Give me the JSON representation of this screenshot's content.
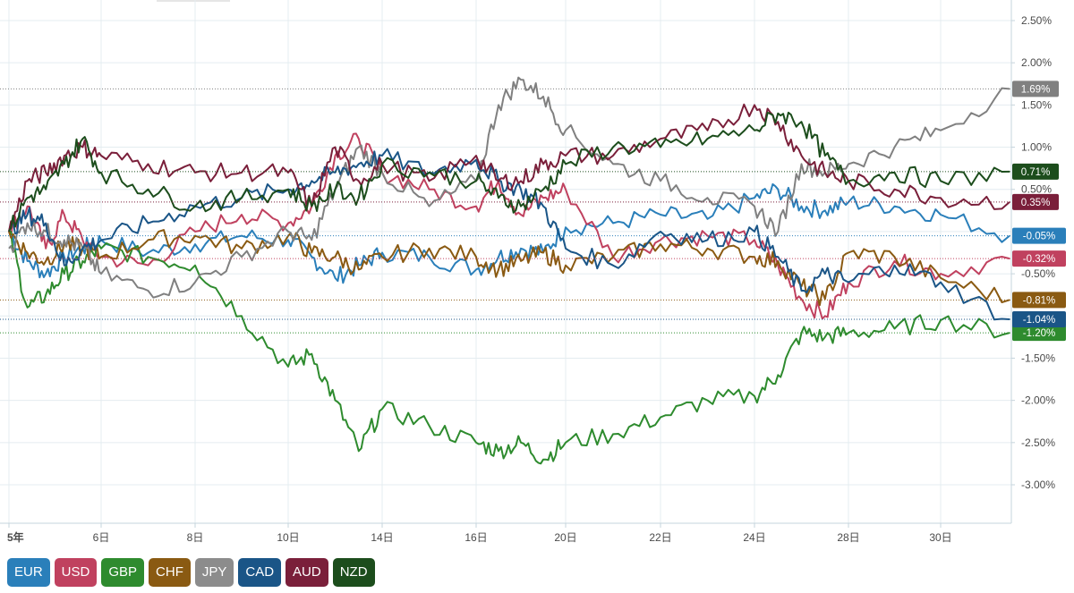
{
  "chart_data": {
    "type": "line",
    "title": "",
    "xlabel": "",
    "ylabel": "",
    "ylim": [
      -3.5,
      2.6
    ],
    "y_ticks": [
      2.5,
      2.0,
      1.5,
      1.0,
      0.5,
      -0.5,
      -1.5,
      -2.0,
      -2.5,
      -3.0
    ],
    "y_tick_labels": [
      "2.50%",
      "2.00%",
      "1.50%",
      "1.00%",
      "0.50%",
      "-0.50%",
      "-1.50%",
      "-2.00%",
      "-2.50%",
      "-3.00%"
    ],
    "x_range": [
      1,
      31
    ],
    "x_ticks": [
      1,
      6,
      8,
      10,
      14,
      16,
      20,
      22,
      24,
      28,
      30
    ],
    "x_tick_labels": [
      "5年",
      "6日",
      "8日",
      "10日",
      "14日",
      "16日",
      "20日",
      "22日",
      "24日",
      "28日",
      "30日"
    ],
    "grid": true,
    "legend_position": "bottom-left",
    "series": [
      {
        "name": "EUR",
        "color": "#2a7fba",
        "last": -0.05,
        "last_label": "-0.05%",
        "x": [
          1,
          2,
          3,
          4,
          5,
          6,
          7,
          8,
          9,
          10,
          11,
          12,
          13,
          14,
          15,
          16,
          17,
          18,
          19,
          20,
          21,
          22,
          23,
          24,
          25,
          26,
          27,
          28,
          29,
          30,
          31
        ],
        "values": [
          0.0,
          -0.35,
          -0.5,
          -0.3,
          -0.2,
          -0.1,
          -0.25,
          -0.15,
          -0.05,
          -0.1,
          -0.3,
          -0.55,
          -0.4,
          -0.25,
          -0.3,
          -0.45,
          -0.3,
          -0.2,
          -0.25,
          0.05,
          0.1,
          0.2,
          0.15,
          0.4,
          0.5,
          0.3,
          0.25,
          0.35,
          0.3,
          0.2,
          -0.05
        ]
      },
      {
        "name": "USD",
        "color": "#c0415f",
        "last": -0.32,
        "last_label": "-0.32%",
        "x": [
          1,
          2,
          3,
          4,
          5,
          6,
          7,
          8,
          9,
          10,
          11,
          12,
          13,
          14,
          15,
          16,
          17,
          18,
          19,
          20,
          21,
          22,
          23,
          24,
          25,
          26,
          27,
          28,
          29,
          30,
          31
        ],
        "values": [
          0.0,
          0.3,
          -0.2,
          0.2,
          -0.1,
          -0.3,
          -0.4,
          0.0,
          0.2,
          0.1,
          0.3,
          0.9,
          1.1,
          0.7,
          0.5,
          0.3,
          0.6,
          0.2,
          0.4,
          0.5,
          -0.3,
          -0.1,
          -0.05,
          -0.1,
          -0.4,
          -0.8,
          -1.0,
          -0.6,
          -0.35,
          -0.5,
          -0.32
        ]
      },
      {
        "name": "GBP",
        "color": "#2e8b2e",
        "last": -1.2,
        "last_label": "-1.20%",
        "x": [
          1,
          2,
          3,
          4,
          5,
          6,
          7,
          8,
          9,
          10,
          11,
          12,
          13,
          14,
          15,
          16,
          17,
          18,
          19,
          20,
          21,
          22,
          23,
          24,
          25,
          26,
          27,
          28,
          29,
          30,
          31
        ],
        "values": [
          0.0,
          -0.9,
          -0.75,
          -0.5,
          -0.35,
          -0.2,
          -0.3,
          -0.4,
          -1.0,
          -1.6,
          -1.45,
          -2.0,
          -2.6,
          -2.1,
          -2.3,
          -2.5,
          -2.6,
          -2.5,
          -2.7,
          -2.5,
          -2.4,
          -2.2,
          -2.0,
          -1.95,
          -1.7,
          -1.2,
          -1.25,
          -1.2,
          -1.15,
          -1.05,
          -1.2
        ]
      },
      {
        "name": "CHF",
        "color": "#8a5a12",
        "last": -0.81,
        "last_label": "-0.81%",
        "x": [
          1,
          2,
          3,
          4,
          5,
          6,
          7,
          8,
          9,
          10,
          11,
          12,
          13,
          14,
          15,
          16,
          17,
          18,
          19,
          20,
          21,
          22,
          23,
          24,
          25,
          26,
          27,
          28,
          29,
          30,
          31
        ],
        "values": [
          0.0,
          -0.25,
          -0.35,
          -0.15,
          -0.2,
          -0.3,
          -0.1,
          -0.05,
          -0.2,
          -0.05,
          -0.25,
          -0.3,
          -0.45,
          -0.3,
          -0.2,
          -0.3,
          -0.45,
          -0.35,
          -0.25,
          -0.4,
          -0.3,
          -0.15,
          -0.2,
          -0.3,
          -0.35,
          -0.65,
          -0.8,
          -0.25,
          -0.3,
          -0.55,
          -0.81
        ]
      },
      {
        "name": "JPY",
        "color": "#808080",
        "last": 1.69,
        "last_label": "1.69%",
        "x": [
          1,
          2,
          3,
          4,
          5,
          6,
          7,
          8,
          9,
          10,
          11,
          12,
          13,
          14,
          15,
          16,
          17,
          18,
          19,
          20,
          21,
          22,
          23,
          24,
          25,
          26,
          27,
          28,
          29,
          30,
          31
        ],
        "values": [
          -0.2,
          0.1,
          0.0,
          -0.1,
          -0.2,
          -0.5,
          -0.7,
          -0.6,
          -0.3,
          0.0,
          -0.1,
          0.5,
          1.0,
          0.7,
          0.3,
          0.6,
          1.5,
          1.8,
          1.6,
          1.2,
          0.8,
          0.6,
          0.4,
          0.3,
          0.0,
          0.8,
          0.7,
          0.8,
          1.0,
          1.2,
          1.69
        ]
      },
      {
        "name": "CAD",
        "color": "#1a5587",
        "last": -1.04,
        "last_label": "-1.04%",
        "x": [
          1,
          2,
          3,
          4,
          5,
          6,
          7,
          8,
          9,
          10,
          11,
          12,
          13,
          14,
          15,
          16,
          17,
          18,
          19,
          20,
          21,
          22,
          23,
          24,
          25,
          26,
          27,
          28,
          29,
          30,
          31
        ],
        "values": [
          0.0,
          0.2,
          0.1,
          -0.4,
          -0.2,
          -0.1,
          0.1,
          0.3,
          0.4,
          0.5,
          0.6,
          0.7,
          0.8,
          0.9,
          0.7,
          0.85,
          0.6,
          0.5,
          0.3,
          -0.2,
          -0.4,
          0.0,
          -0.1,
          0.0,
          -0.3,
          -0.7,
          -0.5,
          -0.6,
          -0.4,
          -0.6,
          -1.04
        ]
      },
      {
        "name": "AUD",
        "color": "#7a1f3a",
        "last": 0.35,
        "last_label": "0.35%",
        "x": [
          1,
          2,
          3,
          4,
          5,
          6,
          7,
          8,
          9,
          10,
          11,
          12,
          13,
          14,
          15,
          16,
          17,
          18,
          19,
          20,
          21,
          22,
          23,
          24,
          25,
          26,
          27,
          28,
          29,
          30,
          31
        ],
        "values": [
          0.0,
          0.6,
          0.7,
          0.9,
          1.0,
          0.9,
          0.8,
          0.7,
          0.7,
          0.7,
          0.3,
          1.0,
          0.6,
          0.8,
          0.6,
          0.9,
          0.6,
          0.6,
          0.8,
          0.9,
          0.9,
          1.1,
          1.2,
          1.5,
          1.3,
          0.9,
          0.7,
          0.6,
          0.5,
          0.4,
          0.35
        ]
      },
      {
        "name": "NZD",
        "color": "#1c4d1c",
        "last": 0.71,
        "last_label": "0.71%",
        "x": [
          1,
          2,
          3,
          4,
          5,
          6,
          7,
          8,
          9,
          10,
          11,
          12,
          13,
          14,
          15,
          16,
          17,
          18,
          19,
          20,
          21,
          22,
          23,
          24,
          25,
          26,
          27,
          28,
          29,
          30,
          31
        ],
        "values": [
          0.0,
          0.4,
          0.5,
          0.8,
          1.1,
          0.7,
          0.5,
          0.3,
          0.4,
          0.5,
          0.3,
          0.5,
          0.4,
          0.8,
          0.7,
          0.6,
          0.4,
          0.3,
          0.5,
          0.8,
          1.0,
          1.0,
          1.1,
          1.2,
          1.4,
          1.3,
          0.9,
          0.6,
          0.7,
          0.6,
          0.71
        ]
      }
    ]
  },
  "legend": {
    "items": [
      {
        "label": "EUR",
        "color": "#2a7fba"
      },
      {
        "label": "USD",
        "color": "#c0415f"
      },
      {
        "label": "GBP",
        "color": "#2e8b2e"
      },
      {
        "label": "CHF",
        "color": "#8a5a12"
      },
      {
        "label": "JPY",
        "color": "#8c8c8c"
      },
      {
        "label": "CAD",
        "color": "#1a5587"
      },
      {
        "label": "AUD",
        "color": "#7a1f3a"
      },
      {
        "label": "NZD",
        "color": "#1c4d1c"
      }
    ]
  }
}
